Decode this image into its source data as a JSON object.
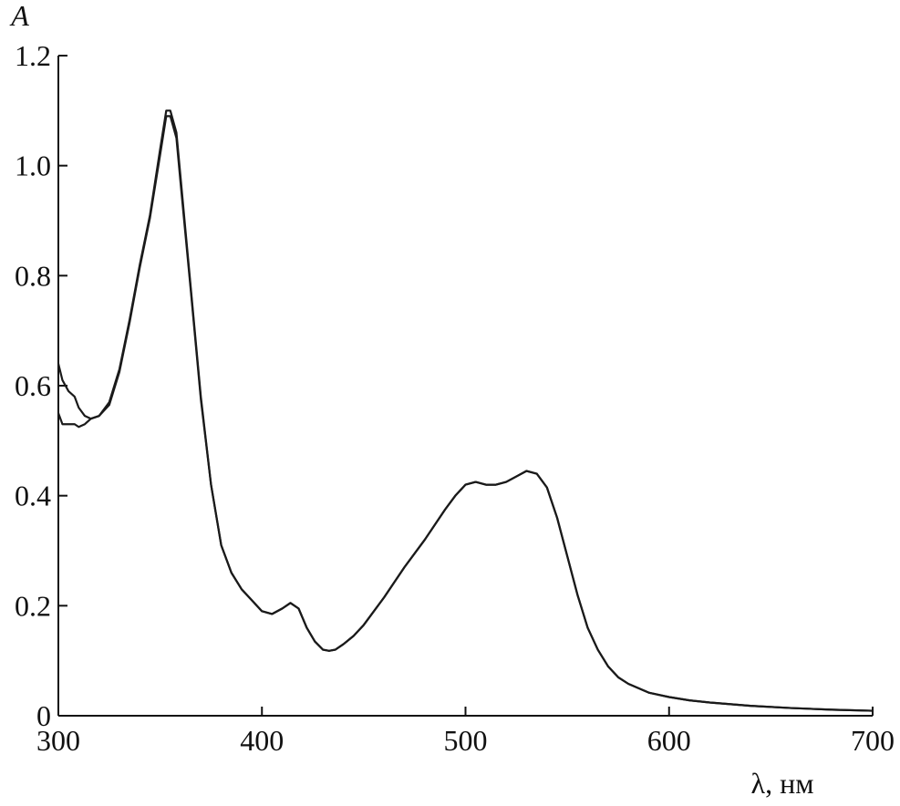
{
  "chart_data": {
    "type": "line",
    "x_label": "λ, нм",
    "y_label": "A",
    "x": [
      300,
      302,
      305,
      308,
      310,
      313,
      316,
      320,
      325,
      330,
      335,
      340,
      345,
      350,
      353,
      355,
      358,
      360,
      365,
      370,
      375,
      380,
      385,
      390,
      395,
      400,
      405,
      410,
      414,
      418,
      422,
      426,
      430,
      433,
      436,
      440,
      445,
      450,
      460,
      470,
      480,
      490,
      495,
      500,
      505,
      510,
      515,
      520,
      525,
      530,
      535,
      540,
      545,
      550,
      555,
      560,
      565,
      570,
      575,
      580,
      590,
      600,
      610,
      620,
      640,
      660,
      680,
      700
    ],
    "series": [
      {
        "color": "#1a1a1a",
        "values": [
          0.64,
          0.61,
          0.59,
          0.58,
          0.56,
          0.545,
          0.54,
          0.545,
          0.57,
          0.63,
          0.72,
          0.82,
          0.91,
          1.03,
          1.1,
          1.1,
          1.06,
          0.98,
          0.78,
          0.58,
          0.42,
          0.31,
          0.26,
          0.23,
          0.21,
          0.19,
          0.185,
          0.195,
          0.205,
          0.195,
          0.16,
          0.135,
          0.12,
          0.118,
          0.12,
          0.13,
          0.145,
          0.165,
          0.215,
          0.27,
          0.32,
          0.375,
          0.4,
          0.42,
          0.425,
          0.42,
          0.42,
          0.425,
          0.435,
          0.445,
          0.44,
          0.415,
          0.36,
          0.29,
          0.22,
          0.16,
          0.12,
          0.09,
          0.07,
          0.058,
          0.042,
          0.034,
          0.028,
          0.024,
          0.018,
          0.014,
          0.011,
          0.009
        ]
      },
      {
        "color": "#1a1a1a",
        "values": [
          0.55,
          0.53,
          0.53,
          0.53,
          0.525,
          0.53,
          0.54,
          0.545,
          0.565,
          0.625,
          0.715,
          0.815,
          0.905,
          1.02,
          1.09,
          1.09,
          1.05,
          0.97,
          0.775,
          0.575,
          0.42,
          0.31,
          0.26,
          0.23,
          0.21,
          0.19,
          0.185,
          0.195,
          0.205,
          0.195,
          0.16,
          0.135,
          0.12,
          0.118,
          0.12,
          0.13,
          0.145,
          0.165,
          0.215,
          0.27,
          0.32,
          0.375,
          0.4,
          0.42,
          0.425,
          0.42,
          0.42,
          0.425,
          0.435,
          0.445,
          0.44,
          0.415,
          0.36,
          0.29,
          0.22,
          0.16,
          0.12,
          0.09,
          0.07,
          0.058,
          0.042,
          0.034,
          0.028,
          0.024,
          0.018,
          0.014,
          0.011,
          0.009
        ]
      }
    ],
    "xlim": [
      300,
      700
    ],
    "xticks": [
      300,
      400,
      500,
      600,
      700
    ],
    "ylim": [
      0,
      1.2
    ],
    "yticks": [
      0,
      0.2,
      0.4,
      0.6,
      0.8,
      {
        "value": 1,
        "label": "1.0"
      },
      1.2
    ]
  }
}
